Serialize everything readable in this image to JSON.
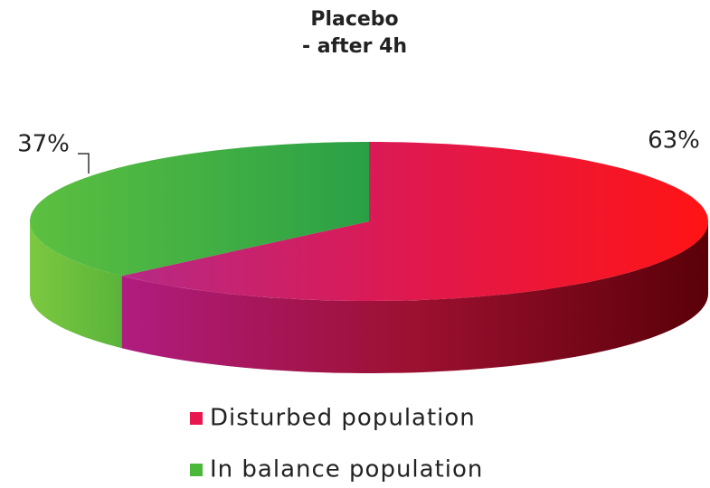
{
  "chart_data": {
    "type": "pie3d",
    "title": "Placebo",
    "subtitle": "- after 4h",
    "categories": [
      "Disturbed population",
      "In balance population"
    ],
    "values": [
      63,
      37
    ],
    "value_labels": [
      "63%",
      "37%"
    ],
    "colors": [
      "#e8174d",
      "#4cb83a"
    ]
  }
}
